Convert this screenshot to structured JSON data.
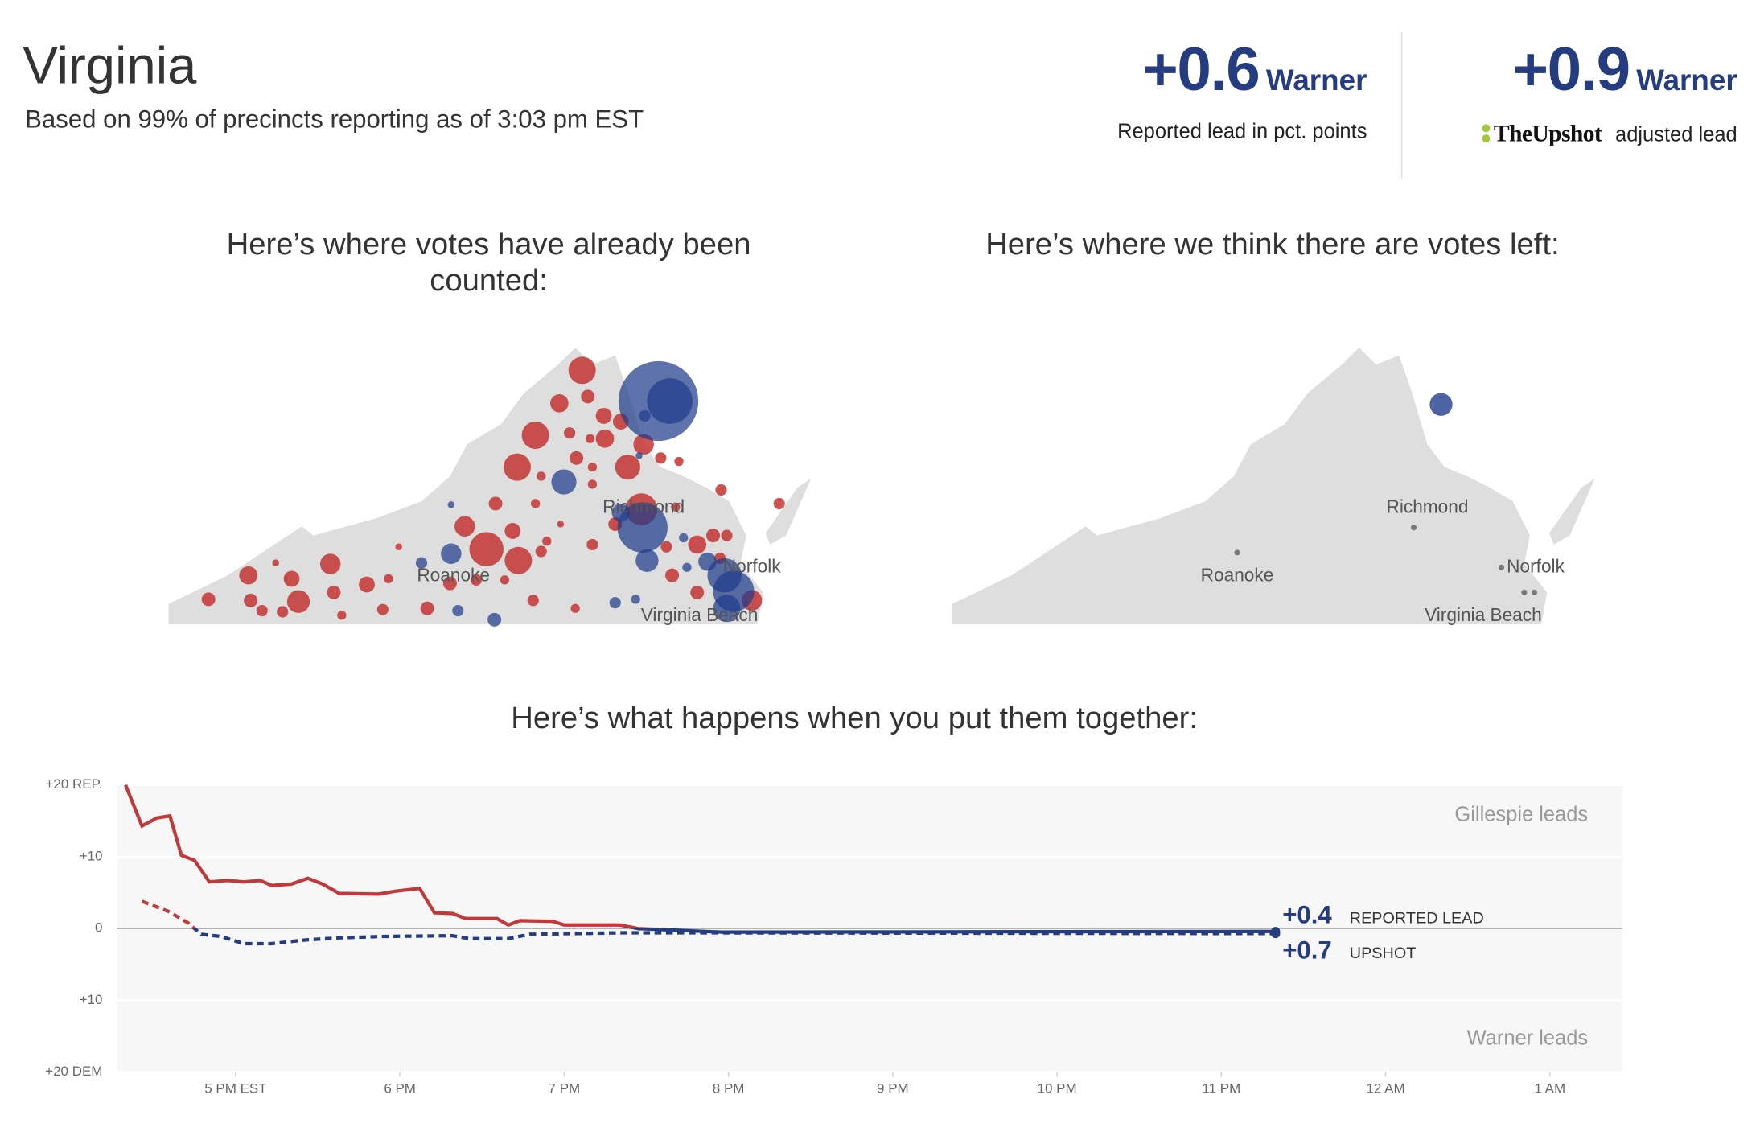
{
  "header": {
    "title": "Virginia",
    "subtitle": "Based on 99% of precincts reporting as of 3:03 pm EST"
  },
  "leads": [
    {
      "value": "+0.6",
      "candidate": "Warner",
      "caption": "Reported lead in pct. points"
    },
    {
      "value": "+0.9",
      "candidate": "Warner",
      "brand": "TheUpshot",
      "caption": "adjusted lead"
    }
  ],
  "maps": [
    {
      "title": "Here’s where votes have already been counted:",
      "cities": [
        "Richmond",
        "Roanoke",
        "Norfolk",
        "Virginia Beach"
      ]
    },
    {
      "title": "Here’s where we think there are votes left:",
      "cities": [
        "Richmond",
        "Roanoke",
        "Norfolk",
        "Virginia Beach"
      ]
    }
  ],
  "chart_data": {
    "type": "line",
    "title": "Here’s what happens when you put them together:",
    "xlim": [
      16.28,
      25.44
    ],
    "xticks": [
      {
        "value": 17,
        "label": "5 PM EST"
      },
      {
        "value": 18,
        "label": "6 PM"
      },
      {
        "value": 19,
        "label": "7 PM"
      },
      {
        "value": 20,
        "label": "8 PM"
      },
      {
        "value": 21,
        "label": "9 PM"
      },
      {
        "value": 22,
        "label": "10 PM"
      },
      {
        "value": 23,
        "label": "11 PM"
      },
      {
        "value": 24,
        "label": "12 AM"
      },
      {
        "value": 25,
        "label": "1 AM"
      }
    ],
    "ylim": [
      -20,
      20
    ],
    "yticks": [
      {
        "value": 20,
        "label": "+20 REP."
      },
      {
        "value": 10,
        "label": "+10"
      },
      0,
      {
        "value": -10,
        "label": "+10"
      },
      {
        "value": -20,
        "label": "+20 DEM"
      }
    ],
    "grid": true,
    "rep_color": "#c0393b",
    "dem_color": "#253c80",
    "annotations": [
      "Gillespie leads",
      "Warner leads"
    ],
    "series": [
      {
        "name": "REPORTED LEAD",
        "lead_label": "+0.4",
        "dashed": false,
        "x": [
          16.33,
          16.43,
          16.52,
          16.6,
          16.67,
          16.75,
          16.84,
          16.95,
          17.05,
          17.15,
          17.22,
          17.34,
          17.44,
          17.53,
          17.63,
          17.87,
          17.97,
          18.12,
          18.21,
          18.32,
          18.4,
          18.59,
          18.66,
          18.73,
          18.93,
          19.0,
          19.34,
          19.45,
          19.96,
          23.33
        ],
        "values": [
          20,
          14.3,
          15.4,
          15.7,
          10.2,
          9.5,
          6.5,
          6.7,
          6.5,
          6.7,
          6.0,
          6.2,
          7.0,
          6.2,
          4.9,
          4.8,
          5.2,
          5.6,
          2.2,
          2.1,
          1.4,
          1.4,
          0.5,
          1.1,
          1.0,
          0.5,
          0.5,
          0,
          -0.5,
          -0.4
        ]
      },
      {
        "name": "UPSHOT",
        "lead_label": "+0.7",
        "dashed": true,
        "x": [
          16.43,
          16.59,
          16.71,
          16.79,
          16.91,
          17.05,
          17.22,
          17.42,
          17.63,
          17.9,
          18.32,
          18.42,
          18.66,
          18.79,
          19.34,
          19.96,
          23.33
        ],
        "values": [
          3.8,
          2.4,
          0.8,
          -0.8,
          -1.1,
          -2.1,
          -2.1,
          -1.6,
          -1.3,
          -1.1,
          -1.0,
          -1.4,
          -1.4,
          -0.8,
          -0.6,
          -0.6,
          -0.7
        ]
      }
    ]
  }
}
